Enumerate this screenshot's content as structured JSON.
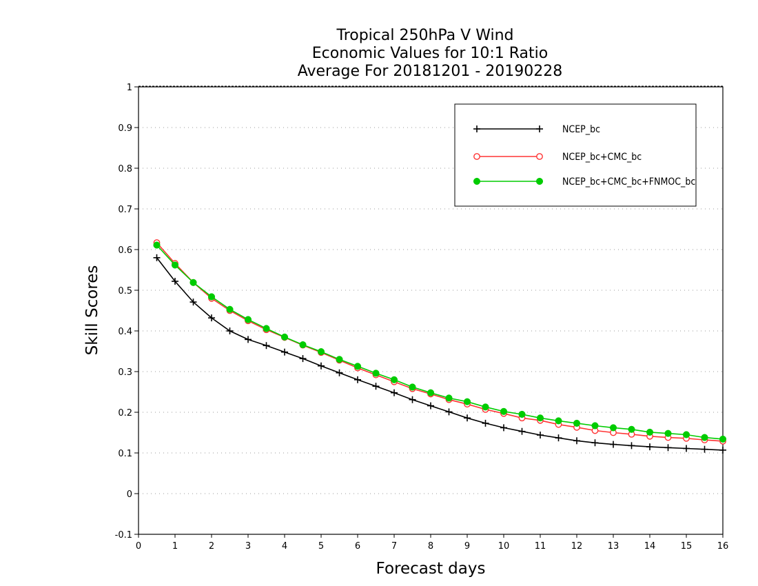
{
  "chart_data": {
    "type": "line",
    "title": [
      "Tropical 250hPa V Wind",
      "Economic Values for 10:1 Ratio",
      "Average For 20181201 - 20190228"
    ],
    "xlabel": "Forecast days",
    "ylabel": "Skill Scores",
    "xlim": [
      0,
      16
    ],
    "ylim": [
      -0.1,
      1
    ],
    "xticks": [
      "0",
      "1",
      "2",
      "3",
      "4",
      "5",
      "6",
      "7",
      "8",
      "9",
      "10",
      "11",
      "12",
      "13",
      "14",
      "15",
      "16"
    ],
    "yticks": [
      "-0.1",
      "0",
      "0.1",
      "0.2",
      "0.3",
      "0.4",
      "0.5",
      "0.6",
      "0.7",
      "0.8",
      "0.9",
      "1"
    ],
    "grid": true,
    "legend_position": "top-right",
    "x": [
      0.5,
      1,
      1.5,
      2,
      2.5,
      3,
      3.5,
      4,
      4.5,
      5,
      5.5,
      6,
      6.5,
      7,
      7.5,
      8,
      8.5,
      9,
      9.5,
      10,
      10.5,
      11,
      11.5,
      12,
      12.5,
      13,
      13.5,
      14,
      14.5,
      15,
      15.5,
      16
    ],
    "series": [
      {
        "name": "NCEP_bc",
        "color": "#000000",
        "marker": "plus",
        "values": [
          0.58,
          0.522,
          0.471,
          0.432,
          0.4,
          0.379,
          0.364,
          0.348,
          0.332,
          0.314,
          0.297,
          0.28,
          0.264,
          0.248,
          0.231,
          0.216,
          0.201,
          0.186,
          0.173,
          0.162,
          0.153,
          0.144,
          0.137,
          0.13,
          0.125,
          0.121,
          0.118,
          0.115,
          0.113,
          0.111,
          0.109,
          0.107
        ]
      },
      {
        "name": "NCEP_bc+CMC_bc",
        "color": "#ff3333",
        "marker": "open-circle",
        "values": [
          0.617,
          0.566,
          0.519,
          0.48,
          0.45,
          0.425,
          0.403,
          0.384,
          0.365,
          0.347,
          0.328,
          0.309,
          0.292,
          0.275,
          0.258,
          0.245,
          0.231,
          0.22,
          0.207,
          0.197,
          0.186,
          0.18,
          0.17,
          0.163,
          0.155,
          0.15,
          0.146,
          0.141,
          0.138,
          0.136,
          0.132,
          0.129
        ]
      },
      {
        "name": "NCEP_bc+CMC_bc+FNMOC_bc",
        "color": "#00cc00",
        "marker": "filled-circle",
        "values": [
          0.611,
          0.562,
          0.519,
          0.484,
          0.453,
          0.428,
          0.406,
          0.385,
          0.366,
          0.349,
          0.33,
          0.313,
          0.296,
          0.28,
          0.262,
          0.248,
          0.235,
          0.226,
          0.213,
          0.202,
          0.195,
          0.186,
          0.179,
          0.173,
          0.167,
          0.162,
          0.158,
          0.151,
          0.148,
          0.145,
          0.138,
          0.134
        ]
      }
    ]
  }
}
